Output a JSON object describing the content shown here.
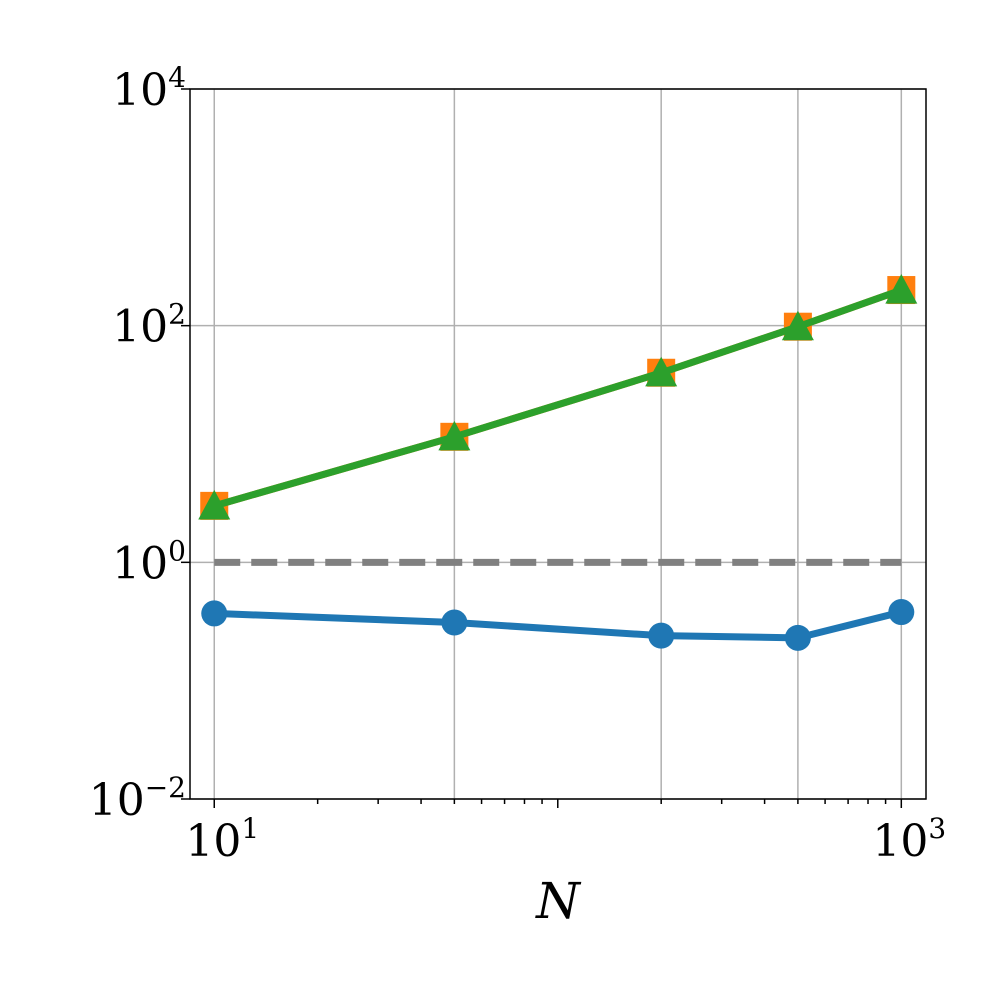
{
  "chart_data": {
    "type": "line",
    "xlabel": "N",
    "ylabel": "",
    "x_scale": "log",
    "y_scale": "log",
    "xlim": [
      8.5,
      1180
    ],
    "ylim": [
      0.01,
      10000
    ],
    "grid": true,
    "x_ticks": [
      {
        "value": 10,
        "base": "10",
        "exp": "1"
      },
      {
        "value": 1000,
        "base": "10",
        "exp": "3"
      }
    ],
    "y_ticks": [
      {
        "value": 0.01,
        "base": "10",
        "exp": "−2"
      },
      {
        "value": 1,
        "base": "10",
        "exp": "0"
      },
      {
        "value": 100,
        "base": "10",
        "exp": "2"
      },
      {
        "value": 10000,
        "base": "10",
        "exp": "4"
      }
    ],
    "reference_line": {
      "y": 1,
      "color": "#808080",
      "style": "dashed"
    },
    "series": [
      {
        "marker": "circle",
        "color": "#1f77b4",
        "x": [
          10,
          50,
          200,
          500,
          1000
        ],
        "y": [
          0.37,
          0.31,
          0.24,
          0.23,
          0.38
        ]
      },
      {
        "marker": "square",
        "color": "#ff7f0e",
        "x": [
          10,
          50,
          200,
          500,
          1000
        ],
        "y": [
          3.0,
          11.5,
          40,
          98,
          200
        ]
      },
      {
        "marker": "triangle",
        "color": "#2ca02c",
        "x": [
          10,
          50,
          200,
          500,
          1000
        ],
        "y": [
          3.0,
          11.5,
          40,
          98,
          200
        ]
      }
    ]
  }
}
